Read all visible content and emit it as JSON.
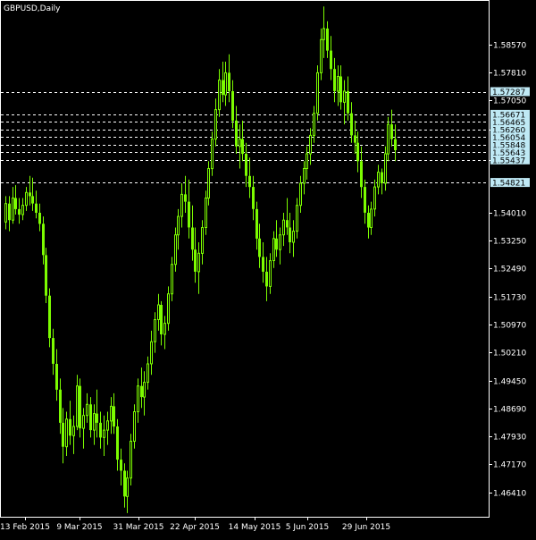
{
  "window": {
    "title": "GBPUSD,Daily"
  },
  "chart_data": {
    "type": "candlestick",
    "symbol": "GBPUSD",
    "timeframe": "Daily",
    "ylim": [
      1.4575,
      1.5975
    ],
    "grid": false,
    "colors": {
      "background": "#000000",
      "frame": "#FFFFFF",
      "candle": "#7CFC00",
      "text": "#FFFFFF",
      "level_line": "#FFFFFF",
      "level_label_bg": "#BFE9F5",
      "level_label_text": "#000000"
    },
    "y_ticks": [
      "1.58570",
      "1.57810",
      "1.57050",
      "1.56260",
      "1.55437",
      "1.54010",
      "1.53250",
      "1.52490",
      "1.51730",
      "1.50970",
      "1.50210",
      "1.49450",
      "1.48690",
      "1.47930",
      "1.47170",
      "1.46410"
    ],
    "x_ticks": [
      "13 Feb 2015",
      "9 Mar 2015",
      "31 Mar 2015",
      "22 Apr 2015",
      "14 May 2015",
      "5 Jun 2015",
      "29 Jun 2015"
    ],
    "level_lines": [
      "1.57287",
      "1.56671",
      "1.56465",
      "1.56260",
      "1.56054",
      "1.55848",
      "1.55643",
      "1.55437",
      "1.54821"
    ],
    "level_labels_shown": [
      "1.57287",
      "1.56671",
      "1.56465",
      "1.56260",
      "1.56054",
      "1.55848",
      "1.55643",
      "1.55437",
      "1.54821"
    ],
    "candles": [
      [
        1.5375,
        1.5445,
        1.5355,
        1.5425
      ],
      [
        1.5425,
        1.5445,
        1.535,
        1.538
      ],
      [
        1.538,
        1.547,
        1.537,
        1.544
      ],
      [
        1.544,
        1.5475,
        1.5395,
        1.541
      ],
      [
        1.541,
        1.544,
        1.537,
        1.5395
      ],
      [
        1.5395,
        1.544,
        1.538,
        1.542
      ],
      [
        1.542,
        1.547,
        1.5405,
        1.5455
      ],
      [
        1.5455,
        1.55,
        1.542,
        1.5445
      ],
      [
        1.5445,
        1.5495,
        1.5405,
        1.5425
      ],
      [
        1.5425,
        1.546,
        1.5385,
        1.54
      ],
      [
        1.54,
        1.5425,
        1.535,
        1.537
      ],
      [
        1.537,
        1.539,
        1.526,
        1.5285
      ],
      [
        1.5285,
        1.5305,
        1.5155,
        1.5175
      ],
      [
        1.5175,
        1.5195,
        1.5035,
        1.506
      ],
      [
        1.506,
        1.5085,
        1.496,
        1.499
      ],
      [
        1.499,
        1.503,
        1.489,
        1.492
      ],
      [
        1.492,
        1.495,
        1.48,
        1.483
      ],
      [
        1.483,
        1.487,
        1.472,
        1.4765
      ],
      [
        1.4765,
        1.486,
        1.474,
        1.484
      ],
      [
        1.484,
        1.489,
        1.477,
        1.4795
      ],
      [
        1.4795,
        1.485,
        1.4745,
        1.482
      ],
      [
        1.482,
        1.496,
        1.481,
        1.493
      ],
      [
        1.493,
        1.495,
        1.479,
        1.4815
      ],
      [
        1.4815,
        1.487,
        1.476,
        1.485
      ],
      [
        1.485,
        1.491,
        1.483,
        1.488
      ],
      [
        1.488,
        1.49,
        1.479,
        1.481
      ],
      [
        1.481,
        1.488,
        1.477,
        1.4855
      ],
      [
        1.4855,
        1.492,
        1.479,
        1.483
      ],
      [
        1.483,
        1.486,
        1.476,
        1.479
      ],
      [
        1.479,
        1.485,
        1.474,
        1.481
      ],
      [
        1.481,
        1.486,
        1.477,
        1.4835
      ],
      [
        1.4835,
        1.49,
        1.48,
        1.4875
      ],
      [
        1.4875,
        1.491,
        1.48,
        1.482
      ],
      [
        1.482,
        1.484,
        1.47,
        1.473
      ],
      [
        1.473,
        1.476,
        1.466,
        1.47
      ],
      [
        1.47,
        1.472,
        1.46,
        1.463
      ],
      [
        1.463,
        1.47,
        1.4585,
        1.468
      ],
      [
        1.468,
        1.48,
        1.466,
        1.478
      ],
      [
        1.478,
        1.488,
        1.476,
        1.486
      ],
      [
        1.486,
        1.495,
        1.483,
        1.493
      ],
      [
        1.493,
        1.498,
        1.487,
        1.49
      ],
      [
        1.49,
        1.497,
        1.485,
        1.494
      ],
      [
        1.494,
        1.501,
        1.492,
        1.499
      ],
      [
        1.499,
        1.508,
        1.496,
        1.505
      ],
      [
        1.505,
        1.513,
        1.502,
        1.511
      ],
      [
        1.511,
        1.518,
        1.508,
        1.515
      ],
      [
        1.515,
        1.516,
        1.504,
        1.507
      ],
      [
        1.507,
        1.512,
        1.503,
        1.51
      ],
      [
        1.51,
        1.52,
        1.508,
        1.518
      ],
      [
        1.518,
        1.528,
        1.516,
        1.526
      ],
      [
        1.526,
        1.536,
        1.524,
        1.534
      ],
      [
        1.534,
        1.541,
        1.53,
        1.539
      ],
      [
        1.539,
        1.548,
        1.536,
        1.545
      ],
      [
        1.545,
        1.55,
        1.54,
        1.543
      ],
      [
        1.543,
        1.549,
        1.533,
        1.536
      ],
      [
        1.536,
        1.542,
        1.527,
        1.53
      ],
      [
        1.53,
        1.536,
        1.521,
        1.524
      ],
      [
        1.524,
        1.532,
        1.518,
        1.529
      ],
      [
        1.529,
        1.538,
        1.526,
        1.536
      ],
      [
        1.536,
        1.546,
        1.534,
        1.544
      ],
      [
        1.544,
        1.554,
        1.542,
        1.552
      ],
      [
        1.552,
        1.562,
        1.55,
        1.56
      ],
      [
        1.56,
        1.571,
        1.558,
        1.568
      ],
      [
        1.568,
        1.579,
        1.566,
        1.576
      ],
      [
        1.576,
        1.581,
        1.57,
        1.572
      ],
      [
        1.572,
        1.581,
        1.569,
        1.578
      ],
      [
        1.578,
        1.583,
        1.57,
        1.573
      ],
      [
        1.573,
        1.576,
        1.563,
        1.565
      ],
      [
        1.565,
        1.569,
        1.556,
        1.558
      ],
      [
        1.558,
        1.564,
        1.552,
        1.56
      ],
      [
        1.56,
        1.565,
        1.554,
        1.556
      ],
      [
        1.556,
        1.559,
        1.547,
        1.55
      ],
      [
        1.55,
        1.555,
        1.544,
        1.547
      ],
      [
        1.547,
        1.55,
        1.538,
        1.541
      ],
      [
        1.541,
        1.543,
        1.53,
        1.533
      ],
      [
        1.533,
        1.537,
        1.525,
        1.528
      ],
      [
        1.528,
        1.532,
        1.521,
        1.524
      ],
      [
        1.524,
        1.528,
        1.516,
        1.52
      ],
      [
        1.52,
        1.529,
        1.518,
        1.527
      ],
      [
        1.527,
        1.535,
        1.525,
        1.533
      ],
      [
        1.533,
        1.538,
        1.528,
        1.53
      ],
      [
        1.53,
        1.536,
        1.526,
        1.534
      ],
      [
        1.534,
        1.54,
        1.531,
        1.538
      ],
      [
        1.538,
        1.544,
        1.534,
        1.536
      ],
      [
        1.536,
        1.54,
        1.529,
        1.532
      ],
      [
        1.532,
        1.538,
        1.528,
        1.535
      ],
      [
        1.535,
        1.544,
        1.533,
        1.542
      ],
      [
        1.542,
        1.55,
        1.54,
        1.548
      ],
      [
        1.548,
        1.554,
        1.545,
        1.552
      ],
      [
        1.552,
        1.558,
        1.549,
        1.556
      ],
      [
        1.556,
        1.563,
        1.553,
        1.561
      ],
      [
        1.561,
        1.569,
        1.559,
        1.567
      ],
      [
        1.567,
        1.58,
        1.565,
        1.578
      ],
      [
        1.578,
        1.59,
        1.576,
        1.587
      ],
      [
        1.587,
        1.596,
        1.582,
        1.59
      ],
      [
        1.59,
        1.592,
        1.582,
        1.584
      ],
      [
        1.584,
        1.588,
        1.576,
        1.579
      ],
      [
        1.579,
        1.582,
        1.57,
        1.573
      ],
      [
        1.573,
        1.58,
        1.569,
        1.577
      ],
      [
        1.577,
        1.58,
        1.568,
        1.57
      ],
      [
        1.57,
        1.576,
        1.564,
        1.573
      ],
      [
        1.573,
        1.577,
        1.565,
        1.567
      ],
      [
        1.567,
        1.57,
        1.559,
        1.561
      ],
      [
        1.561,
        1.565,
        1.556,
        1.559
      ],
      [
        1.559,
        1.562,
        1.551,
        1.554
      ],
      [
        1.554,
        1.558,
        1.544,
        1.547
      ],
      [
        1.547,
        1.549,
        1.537,
        1.54
      ],
      [
        1.54,
        1.542,
        1.533,
        1.536
      ],
      [
        1.536,
        1.543,
        1.534,
        1.541
      ],
      [
        1.541,
        1.549,
        1.539,
        1.547
      ],
      [
        1.547,
        1.553,
        1.545,
        1.551
      ],
      [
        1.551,
        1.552,
        1.545,
        1.548
      ],
      [
        1.548,
        1.558,
        1.546,
        1.556
      ],
      [
        1.556,
        1.566,
        1.554,
        1.564
      ],
      [
        1.564,
        1.568,
        1.558,
        1.56
      ],
      [
        1.56,
        1.564,
        1.554,
        1.557
      ]
    ]
  }
}
